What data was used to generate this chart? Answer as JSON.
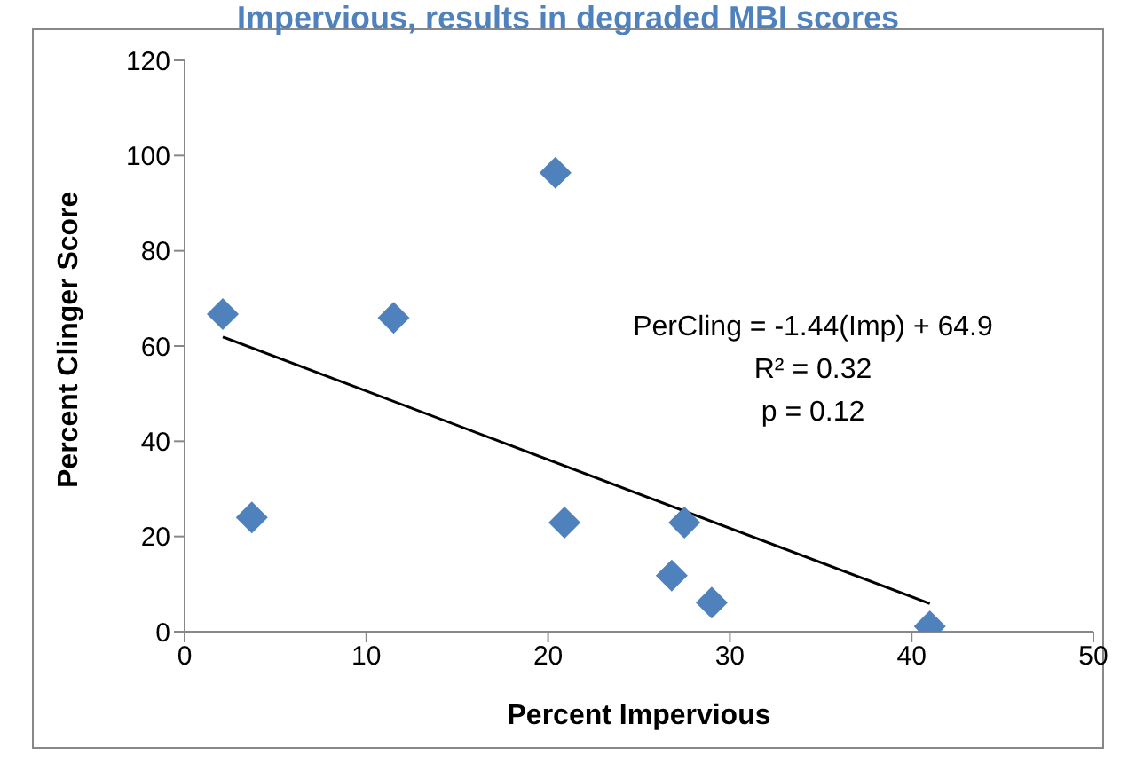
{
  "chart_data": {
    "type": "scatter",
    "title": "Impervious, results in degraded MBI scores",
    "xlabel": "Percent Impervious",
    "ylabel": "Percent Clinger Score",
    "series": [
      {
        "color": "#4f81bd",
        "marker": "diamond",
        "x": [
          2.1,
          3.7,
          11.5,
          20.4,
          20.9,
          27.5,
          26.8,
          29.0,
          41.0
        ],
        "values": [
          66.7,
          24,
          65.9,
          96.4,
          22.9,
          22.9,
          11.8,
          6.1,
          1.1
        ]
      },
      {
        "type": "line",
        "color": "#000000",
        "marker": "none",
        "x": [
          2.1,
          41.0
        ],
        "values": [
          61.9,
          5.9
        ]
      }
    ],
    "xlim": [
      0,
      50
    ],
    "xticks": [
      0,
      10,
      20,
      30,
      40,
      50
    ],
    "ylim": [
      0,
      120
    ],
    "yticks": [
      0,
      20,
      40,
      60,
      80,
      100,
      120
    ],
    "grid": false,
    "legend": false,
    "annotations": [
      "PerCling = -1.44(Imp) + 64.9",
      "R² = 0.32",
      "p = 0.12"
    ]
  }
}
